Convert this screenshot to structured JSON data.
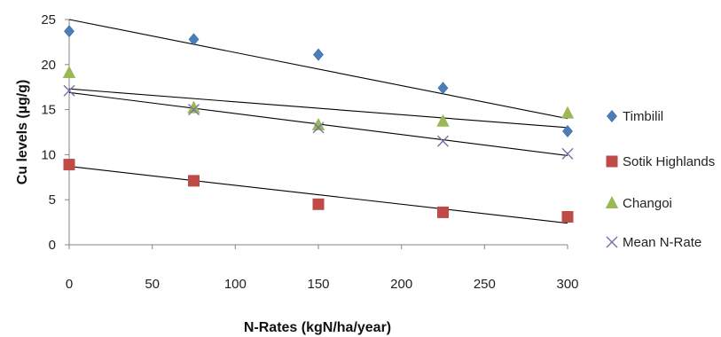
{
  "chart_data": {
    "type": "scatter",
    "title": "",
    "xlabel": "N-Rates (kgN/ha/year)",
    "ylabel": "Cu levels (µg/g)",
    "xlim": [
      0,
      300
    ],
    "ylim": [
      0,
      25
    ],
    "x_ticks": [
      "0",
      "50",
      "100",
      "150",
      "200",
      "250",
      "300"
    ],
    "y_ticks": [
      "0",
      "5",
      "10",
      "15",
      "20",
      "25"
    ],
    "grid": false,
    "legend_position": "right",
    "x": [
      0,
      75,
      150,
      225,
      300
    ],
    "series": [
      {
        "name": "Timbilil",
        "marker": "diamond",
        "color": "#4a7ebb",
        "values": [
          23.7,
          22.8,
          21.1,
          17.4,
          12.6
        ],
        "trendline": [
          25.0,
          14.0
        ]
      },
      {
        "name": "Sotik Highlands",
        "marker": "square",
        "color": "#be4b48",
        "values": [
          8.9,
          7.1,
          4.5,
          3.6,
          3.1
        ],
        "trendline": [
          8.7,
          2.4
        ]
      },
      {
        "name": "Changoi",
        "marker": "triangle",
        "color": "#98b954",
        "values": [
          19.1,
          15.2,
          13.3,
          13.7,
          14.6
        ],
        "trendline": [
          17.3,
          13.0
        ]
      },
      {
        "name": "Mean N-Rate",
        "marker": "x",
        "color": "#7d6fa8",
        "values": [
          17.1,
          15.0,
          13.0,
          11.5,
          10.1
        ],
        "trendline": [
          16.9,
          9.9
        ]
      }
    ]
  }
}
